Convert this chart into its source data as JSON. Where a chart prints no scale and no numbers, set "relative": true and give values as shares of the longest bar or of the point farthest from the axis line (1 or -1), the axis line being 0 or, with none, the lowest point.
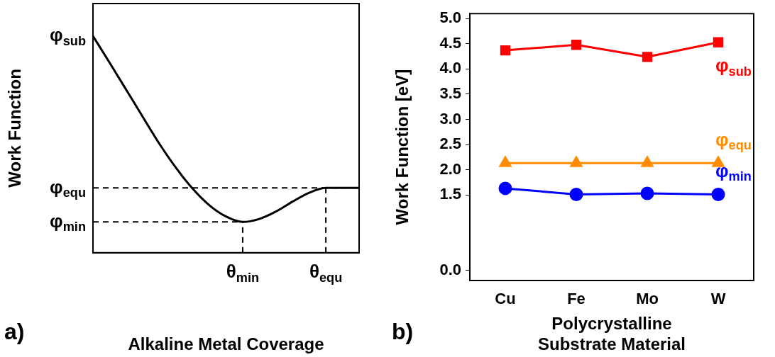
{
  "chart_data": [
    {
      "type": "line",
      "relative": true,
      "xlabel": "Alkaline Metal Coverage",
      "ylabel": "Work Function",
      "categories": [
        null,
        null,
        null,
        null,
        null,
        null,
        null,
        null,
        null,
        "θ$_{min}$",
        null,
        null,
        null,
        null,
        "θ$_{equ}$",
        null,
        null
      ],
      "series": [
        {
          "name": "φ$_{sub}$",
          "color": "#000000",
          "marker": "none",
          "values": [
            1,
            0.877,
            0.752,
            0.626,
            0.502,
            0.391,
            0.295,
            0.219,
            0.167,
            0.142,
            0.156,
            0.19,
            0.236,
            0.277,
            0.299,
            0.299,
            0.299
          ]
        }
      ],
      "ref_lines": [
        {
          "axis": "y",
          "value": 0.299,
          "label": "φ$_{equ}$",
          "line_style": "dashed",
          "color": "#000000"
        },
        {
          "axis": "y",
          "value": 0.142,
          "label": "φ$_{min}$",
          "line_style": "dashed",
          "color": "#000000"
        },
        {
          "axis": "x",
          "value": "θ$_{min}$",
          "line_style": "dashed",
          "color": "#000000"
        },
        {
          "axis": "x",
          "value": "θ$_{equ}$",
          "line_style": "dashed",
          "color": "#000000"
        }
      ],
      "annotations": [
        "a)"
      ],
      "legend": false
    },
    {
      "type": "line",
      "xlabel": "Polycrystalline\nSubstrate Material",
      "ylabel": "Work Function [eV]",
      "categories": [
        "Cu",
        "Fe",
        "Mo",
        "W"
      ],
      "ylim": [
        -0.2,
        5.1
      ],
      "yticks": [
        {
          "value": 0,
          "label": "0.0"
        },
        1.5,
        {
          "value": 2,
          "label": "2.0"
        },
        2.5,
        {
          "value": 3,
          "label": "3.0"
        },
        3.5,
        {
          "value": 4,
          "label": "4.0"
        },
        4.5,
        {
          "value": 5,
          "label": "5.0"
        }
      ],
      "series": [
        {
          "name": "φ$_{sub}$",
          "color": "#ff0000",
          "marker": "square",
          "values": [
            4.37,
            4.48,
            4.24,
            4.53
          ]
        },
        {
          "name": "φ$_{equ}$",
          "color": "#ff8c00",
          "marker": "triangle",
          "values": [
            2.13,
            2.13,
            2.13,
            2.13
          ]
        },
        {
          "name": "φ$_{min}$",
          "color": "#0000ff",
          "marker": "circle",
          "values": [
            1.63,
            1.51,
            1.53,
            1.51
          ]
        }
      ],
      "annotations": [
        "b)"
      ],
      "legend": false
    }
  ]
}
